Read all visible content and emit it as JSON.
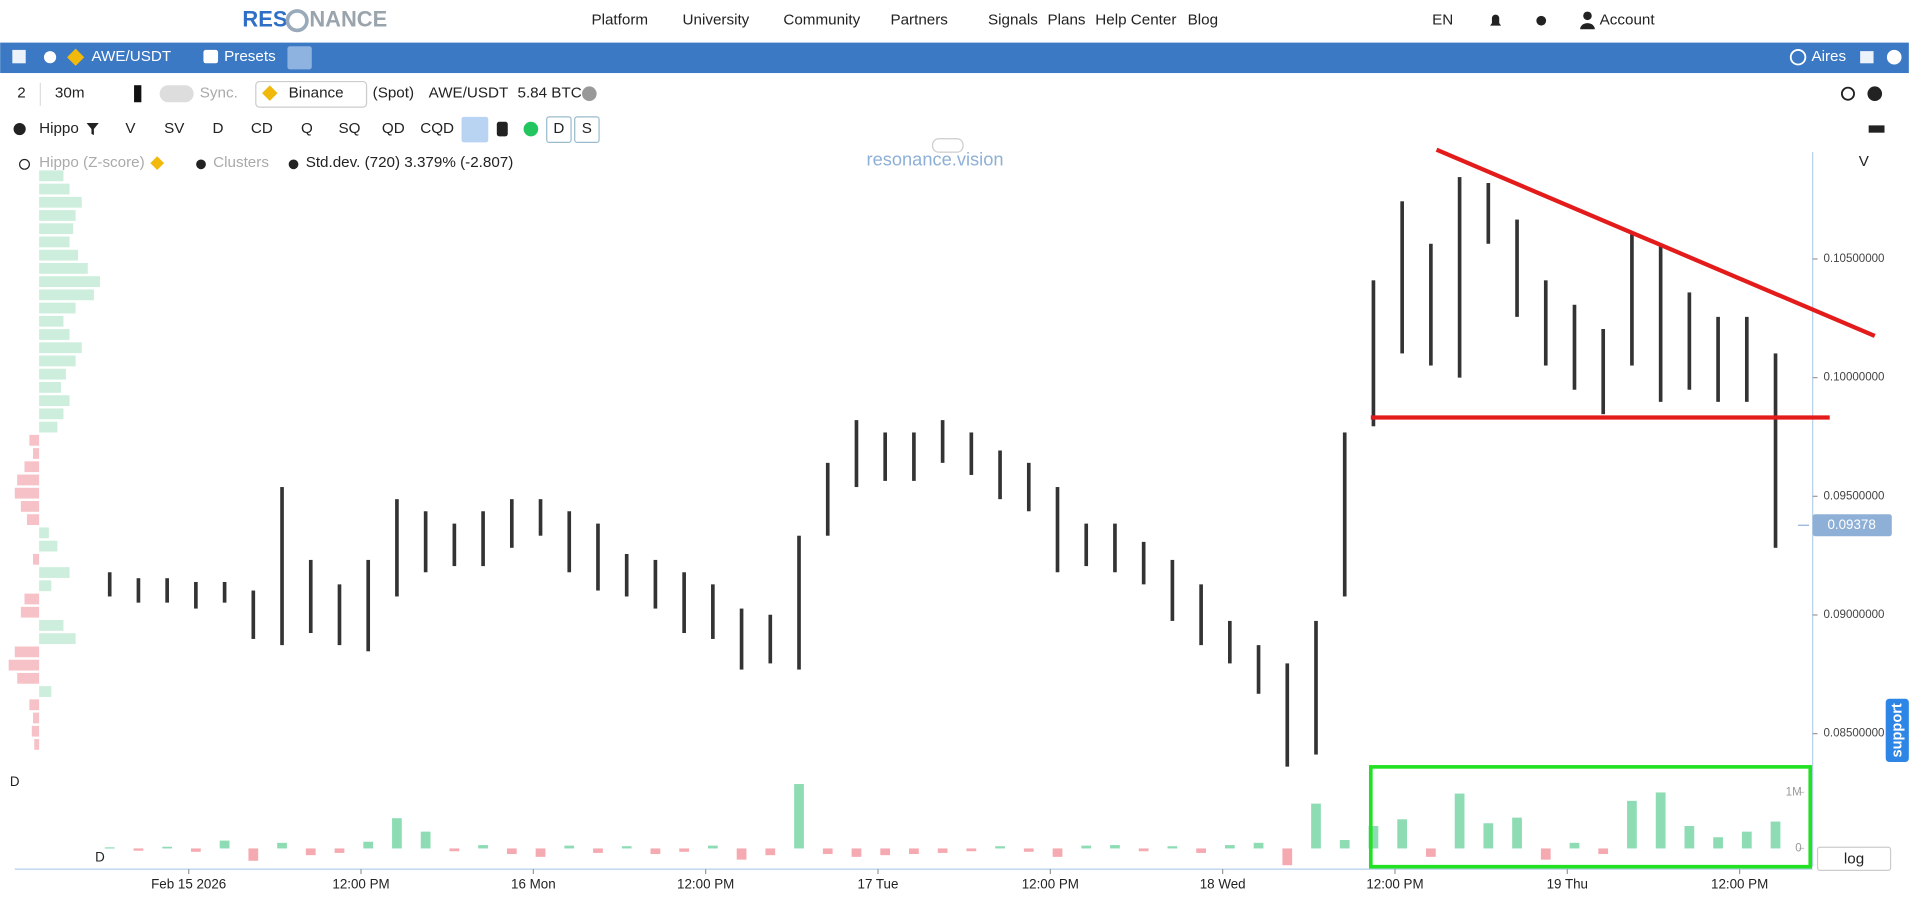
{
  "header": {
    "logo_left": "RES",
    "logo_right": "NANCE",
    "nav": [
      "Platform",
      "University",
      "Community",
      "Partners",
      "Signals",
      "Plans",
      "Help Center",
      "Blog"
    ],
    "language": "EN",
    "account": "Account"
  },
  "symbol_bar": {
    "symbol": "AWE/USDT",
    "presets": "Presets",
    "user": "Aires"
  },
  "toolbar": {
    "layout": "2",
    "interval": "30m",
    "sync": "Sync.",
    "exchange": "Binance",
    "market": "(Spot)",
    "pair": "AWE/USDT",
    "volume": "5.84 BTC"
  },
  "indicators": {
    "name": "Hippo",
    "items": [
      "V",
      "SV",
      "D",
      "CD",
      "Q",
      "SQ",
      "QD",
      "CQD"
    ],
    "extra": [
      "D",
      "S"
    ]
  },
  "legend": {
    "profile": "Hippo (Z-score)",
    "clusters": "Clusters",
    "stddev": "Std.dev. (720) 3.379% (-2.807)"
  },
  "watermark": "resonance.vision",
  "right_label": "V",
  "pane_label": "D",
  "pane_label_bottom": "D",
  "log_button": "log",
  "support": "support",
  "chart_data": [
    {
      "type": "ohlc",
      "last_price": {
        "value": 0.09378,
        "label": "0.09378"
      },
      "xlim": [
        0,
        58.7
      ],
      "ylim": [
        0.0836,
        0.1095
      ],
      "xticks": [
        {
          "value": 2.75,
          "label": "Feb 15 2026"
        },
        {
          "value": 8.75,
          "label": "12:00 PM"
        },
        {
          "value": 14.75,
          "label": "16 Mon"
        },
        {
          "value": 20.75,
          "label": "12:00 PM"
        },
        {
          "value": 26.75,
          "label": "17 Tue"
        },
        {
          "value": 32.75,
          "label": "12:00 PM"
        },
        {
          "value": 38.75,
          "label": "18 Wed"
        },
        {
          "value": 44.75,
          "label": "12:00 PM"
        },
        {
          "value": 50.75,
          "label": "19 Thu"
        },
        {
          "value": 56.75,
          "label": "12:00 PM"
        }
      ],
      "yticks": [
        {
          "value": 0.085,
          "label": "0.08500000"
        },
        {
          "value": 0.09,
          "label": "0.09000000"
        },
        {
          "value": 0.095,
          "label": "0.09500000"
        },
        {
          "value": 0.1,
          "label": "0.10000000"
        },
        {
          "value": 0.105,
          "label": "0.10500000"
        }
      ],
      "color": "#333333",
      "highs": [
        0.0918,
        0.09155,
        0.09155,
        0.09139,
        0.09139,
        0.09103,
        0.09539,
        0.09232,
        0.09129,
        0.09232,
        0.09488,
        0.09437,
        0.09385,
        0.09437,
        0.09488,
        0.09488,
        0.09437,
        0.09385,
        0.09257,
        0.09232,
        0.0918,
        0.09129,
        0.09027,
        0.09001,
        0.09334,
        0.09641,
        0.09821,
        0.09769,
        0.09769,
        0.09821,
        0.09769,
        0.09693,
        0.09641,
        0.09539,
        0.09385,
        0.09385,
        0.09308,
        0.09232,
        0.09129,
        0.08975,
        0.08873,
        0.08796,
        0.08975,
        0.09769,
        0.1041,
        0.10743,
        0.10564,
        0.10845,
        0.1082,
        0.10666,
        0.1041,
        0.10307,
        0.10205,
        0.10615,
        0.10564,
        0.10359,
        0.10256,
        0.10256,
        0.10102
      ],
      "lows": [
        0.09078,
        0.09052,
        0.09052,
        0.09027,
        0.09052,
        0.08899,
        0.08873,
        0.08924,
        0.08873,
        0.08847,
        0.09078,
        0.0918,
        0.09206,
        0.09206,
        0.09283,
        0.09334,
        0.0918,
        0.09103,
        0.09078,
        0.09027,
        0.08924,
        0.08899,
        0.0877,
        0.08796,
        0.0877,
        0.09334,
        0.09539,
        0.09565,
        0.09565,
        0.09641,
        0.0959,
        0.09488,
        0.09437,
        0.0918,
        0.09206,
        0.0918,
        0.09129,
        0.08975,
        0.08873,
        0.08796,
        0.08668,
        0.08361,
        0.08412,
        0.09078,
        0.09795,
        0.10102,
        0.10051,
        0.1,
        0.10564,
        0.10256,
        0.10051,
        0.09949,
        0.09846,
        0.10051,
        0.09898,
        0.09949,
        0.09898,
        0.09898,
        0.09283
      ],
      "profile": [
        20,
        25,
        35,
        30,
        28,
        25,
        32,
        40,
        50,
        45,
        30,
        20,
        25,
        35,
        30,
        22,
        18,
        25,
        20,
        15,
        -8,
        -5,
        -12,
        -18,
        -20,
        -15,
        -10,
        8,
        15,
        -5,
        25,
        10,
        -12,
        -15,
        20,
        30,
        -20,
        -25,
        -18,
        10,
        -8,
        -5,
        -6,
        -4
      ]
    },
    {
      "type": "bar",
      "ylim": [
        -326000,
        1239000
      ],
      "yticks": [
        0,
        {
          "value": 1000000,
          "label": "1M"
        }
      ],
      "up_color": "#8edcb4",
      "down_color": "#f5a9b0",
      "values": [
        20000,
        -40000,
        30000,
        -60000,
        140000,
        -220000,
        100000,
        -120000,
        -80000,
        120000,
        540000,
        300000,
        -50000,
        60000,
        -100000,
        -150000,
        50000,
        -80000,
        40000,
        -100000,
        -60000,
        50000,
        -200000,
        -120000,
        1150000,
        -100000,
        -150000,
        -120000,
        -100000,
        -80000,
        -50000,
        40000,
        -60000,
        -150000,
        50000,
        60000,
        -50000,
        40000,
        -80000,
        60000,
        100000,
        -300000,
        800000,
        150000,
        400000,
        520000,
        -150000,
        980000,
        450000,
        550000,
        -200000,
        100000,
        -100000,
        850000,
        1000000,
        400000,
        200000,
        300000,
        480000
      ]
    }
  ]
}
